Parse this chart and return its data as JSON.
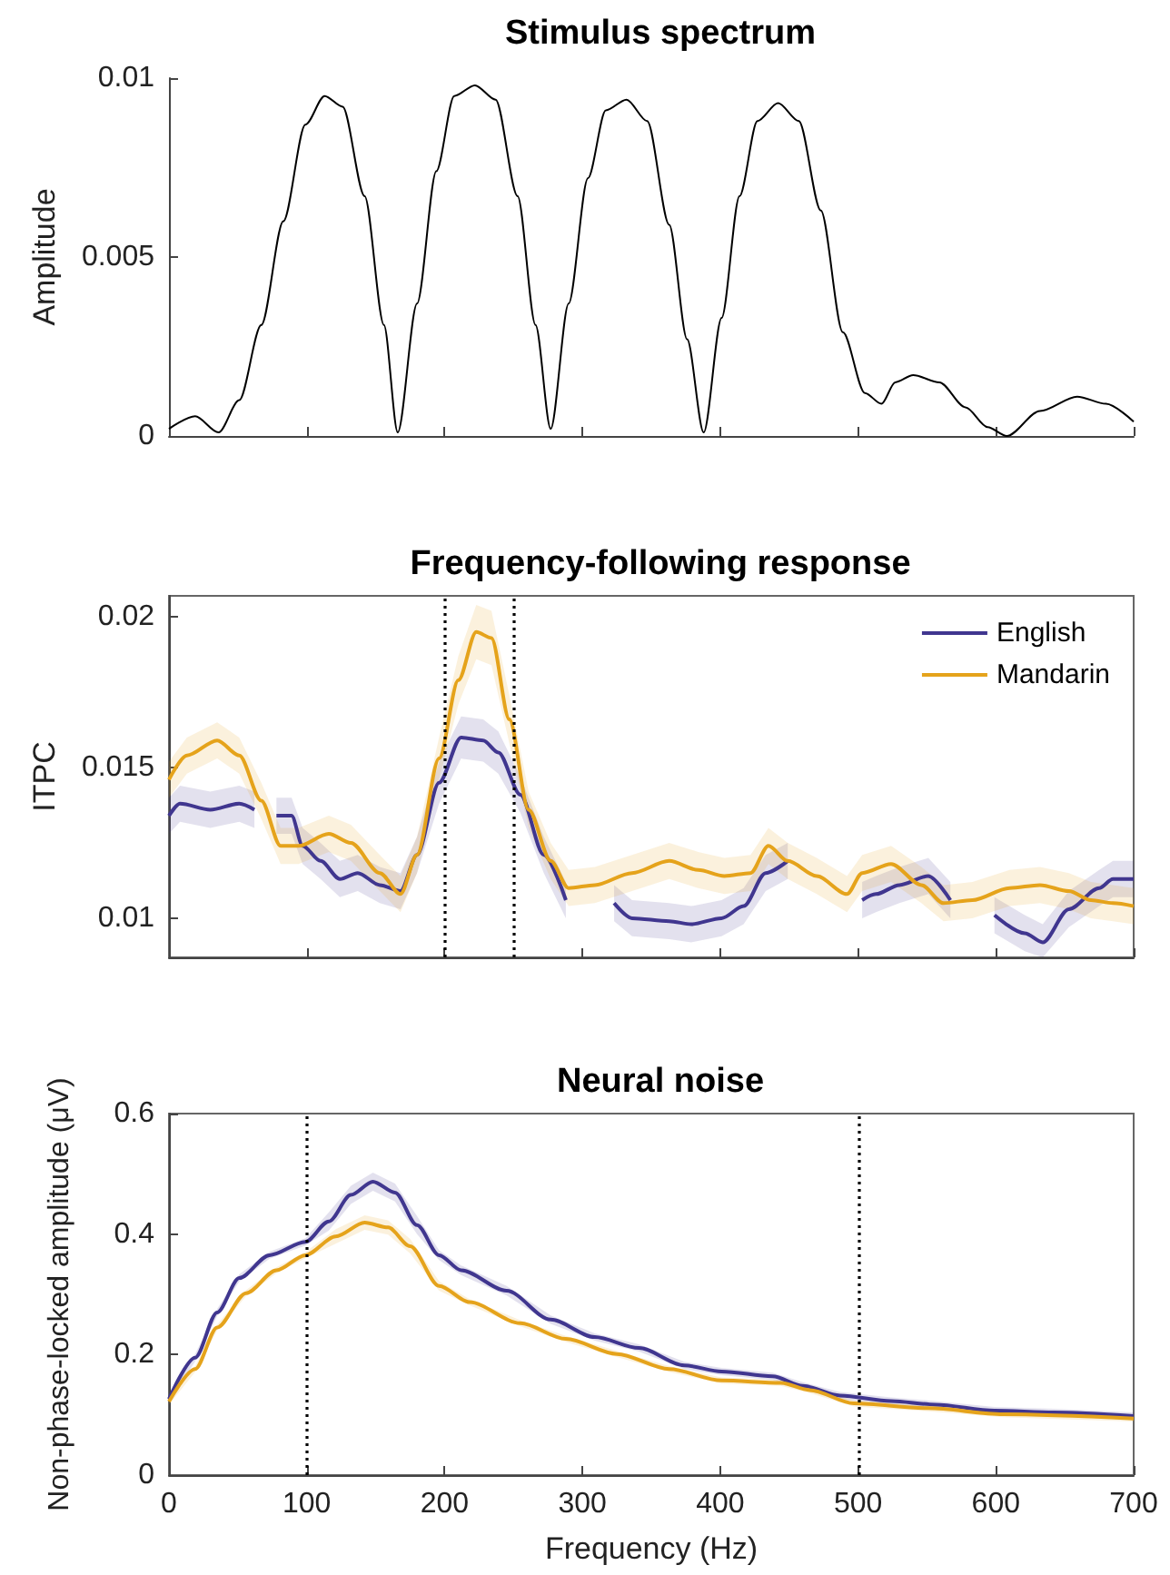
{
  "chart_data": [
    {
      "type": "line",
      "title": "Stimulus spectrum",
      "ylabel": "Amplitude",
      "xlim": [
        0,
        700
      ],
      "ylim": [
        0,
        0.01
      ],
      "yticks": [
        0,
        0.005,
        0.01
      ],
      "xticks": [
        {
          "value": 0,
          "label": null
        },
        {
          "value": 100,
          "label": null
        },
        {
          "value": 200,
          "label": null
        },
        {
          "value": 300,
          "label": null
        },
        {
          "value": 400,
          "label": null
        },
        {
          "value": 500,
          "label": null
        },
        {
          "value": 600,
          "label": null
        },
        {
          "value": 700,
          "label": null
        }
      ],
      "tick_labels": "y",
      "grid": false,
      "legend": false,
      "series": [
        {
          "color": "#000000",
          "x": [
            0,
            19,
            36,
            51,
            67,
            83,
            99,
            113,
            126,
            142,
            156,
            166,
            180,
            194,
            207,
            222,
            237,
            253,
            266,
            277,
            290,
            304,
            317,
            332,
            347,
            363,
            376,
            388,
            401,
            414,
            427,
            442,
            457,
            473,
            489,
            505,
            517,
            527,
            540,
            559,
            578,
            594,
            608,
            632,
            659,
            680,
            700
          ],
          "values": [
            0.0002,
            0.00055,
            0.0001,
            0.001,
            0.0031,
            0.006,
            0.0087,
            0.0095,
            0.0092,
            0.0067,
            0.0031,
            0.0001,
            0.0037,
            0.0074,
            0.0095,
            0.0098,
            0.0094,
            0.0067,
            0.0031,
            0.0002,
            0.0037,
            0.0072,
            0.0091,
            0.0094,
            0.0088,
            0.0059,
            0.0027,
            0.0001,
            0.0033,
            0.0067,
            0.0088,
            0.0093,
            0.0088,
            0.0063,
            0.0029,
            0.0012,
            0.0009,
            0.0015,
            0.0017,
            0.0015,
            0.0008,
            0.00025,
            0.0,
            0.0007,
            0.0011,
            0.0009,
            0.0004
          ]
        }
      ]
    },
    {
      "type": "line",
      "title": "Frequency-following response",
      "ylabel": "ITPC",
      "xlim": [
        0,
        700
      ],
      "ylim": [
        0.0087,
        0.0207
      ],
      "yticks": [
        0.01,
        0.015,
        0.02
      ],
      "xticks": [
        {
          "value": 0,
          "label": null
        },
        {
          "value": 100,
          "label": null
        },
        {
          "value": 200,
          "label": null
        },
        {
          "value": 300,
          "label": null
        },
        {
          "value": 400,
          "label": null
        },
        {
          "value": 500,
          "label": null
        },
        {
          "value": 600,
          "label": null
        },
        {
          "value": 700,
          "label": null
        }
      ],
      "tick_labels": "y",
      "grid": false,
      "legend": "top right",
      "ref_lines": [
        {
          "axis": "x",
          "value": 200,
          "color": "#000000",
          "line_style": "dotted"
        },
        {
          "axis": "x",
          "value": 250,
          "color": "#000000",
          "line_style": "dotted"
        }
      ],
      "series": [
        {
          "name": "English",
          "color": "#40368f",
          "x": [
            0,
            8,
            30,
            51,
            62,
            67,
            78,
            89,
            97,
            110,
            124,
            137,
            153,
            168,
            180,
            196,
            212,
            228,
            239,
            255,
            272,
            288,
            300,
            323,
            336,
            363,
            379,
            401,
            417,
            433,
            449,
            470,
            503,
            513,
            530,
            551,
            567,
            585,
            599,
            621,
            634,
            653,
            675,
            685,
            700
          ],
          "values": [
            0.0134,
            0.0138,
            0.0136,
            0.0138,
            0.0136,
            null,
            0.0134,
            0.0134,
            0.0124,
            0.0119,
            0.0113,
            0.0115,
            0.0111,
            0.0109,
            0.0121,
            0.0145,
            0.016,
            0.0159,
            0.0155,
            0.0141,
            0.0121,
            0.0106,
            null,
            0.0105,
            0.01,
            0.0099,
            0.0098,
            0.01,
            0.0104,
            0.0115,
            0.0119,
            null,
            0.0106,
            0.0108,
            0.0111,
            0.0114,
            0.0106,
            null,
            0.0101,
            0.0095,
            0.0092,
            0.0103,
            0.011,
            0.0113,
            0.0113
          ],
          "lower": [
            0.0128,
            0.0132,
            0.013,
            0.0132,
            0.013,
            null,
            0.0128,
            0.0128,
            0.0118,
            0.0113,
            0.0107,
            0.0109,
            0.0105,
            0.0103,
            0.0115,
            0.0138,
            0.0153,
            0.0152,
            0.0148,
            0.0135,
            0.0115,
            0.01,
            null,
            0.0099,
            0.0094,
            0.0093,
            0.0092,
            0.0094,
            0.0098,
            0.0109,
            0.0113,
            null,
            0.01,
            0.0102,
            0.0105,
            0.0108,
            0.01,
            null,
            0.0095,
            0.0089,
            0.0087,
            0.0097,
            0.0104,
            0.0107,
            0.0107
          ],
          "upper": [
            0.014,
            0.0144,
            0.0142,
            0.0144,
            0.0142,
            null,
            0.014,
            0.014,
            0.013,
            0.0125,
            0.0119,
            0.0121,
            0.0117,
            0.0115,
            0.0127,
            0.0152,
            0.0167,
            0.0166,
            0.0162,
            0.0147,
            0.0127,
            0.0112,
            null,
            0.0111,
            0.0106,
            0.0105,
            0.0104,
            0.0106,
            0.011,
            0.0121,
            0.0125,
            null,
            0.0112,
            0.0114,
            0.0117,
            0.012,
            0.0112,
            null,
            0.0107,
            0.0101,
            0.0098,
            0.0109,
            0.0116,
            0.0119,
            0.0119
          ]
        },
        {
          "name": "Mandarin",
          "color": "#e5a31b",
          "x": [
            0,
            13,
            35,
            51,
            67,
            81,
            94,
            116,
            132,
            153,
            168,
            180,
            196,
            210,
            223,
            234,
            247,
            261,
            277,
            290,
            309,
            336,
            363,
            384,
            403,
            422,
            435,
            449,
            470,
            492,
            503,
            524,
            546,
            562,
            583,
            610,
            632,
            653,
            669,
            685,
            700
          ],
          "values": [
            0.0146,
            0.0154,
            0.0159,
            0.0154,
            0.0139,
            0.0124,
            0.0124,
            0.0128,
            0.0125,
            0.0115,
            0.0108,
            0.0121,
            0.0153,
            0.0179,
            0.0195,
            0.0193,
            0.0166,
            0.0136,
            0.0119,
            0.011,
            0.0111,
            0.0115,
            0.0119,
            0.0116,
            0.0114,
            0.0115,
            0.0124,
            0.0119,
            0.0114,
            0.0108,
            0.0115,
            0.0118,
            0.0111,
            0.0105,
            0.0106,
            0.011,
            0.0111,
            0.0109,
            0.0106,
            0.0105,
            0.0104
          ],
          "lower": [
            0.014,
            0.0148,
            0.0153,
            0.0148,
            0.0133,
            0.0118,
            0.0118,
            0.0122,
            0.0119,
            0.0109,
            0.0102,
            0.0115,
            0.0146,
            0.0171,
            0.0186,
            0.0184,
            0.0158,
            0.013,
            0.0113,
            0.0104,
            0.0105,
            0.0109,
            0.0113,
            0.011,
            0.0108,
            0.0109,
            0.0118,
            0.0113,
            0.0108,
            0.0102,
            0.0109,
            0.0112,
            0.0105,
            0.0099,
            0.01,
            0.0104,
            0.0105,
            0.0103,
            0.01,
            0.0099,
            0.0098
          ],
          "upper": [
            0.0152,
            0.016,
            0.0165,
            0.016,
            0.0145,
            0.013,
            0.013,
            0.0134,
            0.0131,
            0.0121,
            0.0114,
            0.0127,
            0.016,
            0.0187,
            0.0204,
            0.0202,
            0.0174,
            0.0142,
            0.0125,
            0.0116,
            0.0117,
            0.0121,
            0.0125,
            0.0122,
            0.012,
            0.0121,
            0.013,
            0.0125,
            0.012,
            0.0114,
            0.0121,
            0.0124,
            0.0117,
            0.0111,
            0.0112,
            0.0116,
            0.0117,
            0.0115,
            0.0112,
            0.0111,
            0.011
          ]
        }
      ]
    },
    {
      "type": "line",
      "title": "Neural noise",
      "xlabel": "Frequency (Hz)",
      "ylabel": "Non-phase-locked amplitude (μV)",
      "xlim": [
        0,
        700
      ],
      "ylim": [
        0,
        0.6
      ],
      "xticks": [
        0,
        100,
        200,
        300,
        400,
        500,
        600,
        700
      ],
      "yticks": [
        0,
        0.2,
        0.4,
        0.6
      ],
      "grid": false,
      "legend": false,
      "ref_lines": [
        {
          "axis": "x",
          "value": 100,
          "color": "#000000",
          "line_style": "dotted"
        },
        {
          "axis": "x",
          "value": 500,
          "color": "#000000",
          "line_style": "dotted"
        }
      ],
      "series": [
        {
          "color": "#40368f",
          "x": [
            0,
            19,
            35,
            51,
            73,
            99,
            116,
            132,
            148,
            164,
            180,
            196,
            212,
            245,
            277,
            309,
            341,
            374,
            401,
            438,
            460,
            487,
            524,
            556,
            599,
            642,
            700
          ],
          "values": [
            0.126,
            0.195,
            0.27,
            0.327,
            0.365,
            0.387,
            0.421,
            0.465,
            0.487,
            0.469,
            0.415,
            0.365,
            0.34,
            0.306,
            0.258,
            0.229,
            0.211,
            0.182,
            0.172,
            0.164,
            0.148,
            0.132,
            0.123,
            0.117,
            0.107,
            0.104,
            0.098
          ],
          "lower": [
            0.12,
            0.189,
            0.264,
            0.321,
            0.359,
            0.381,
            0.406,
            0.45,
            0.472,
            0.454,
            0.4,
            0.357,
            0.332,
            0.298,
            0.251,
            0.223,
            0.205,
            0.176,
            0.166,
            0.158,
            0.142,
            0.126,
            0.117,
            0.111,
            0.101,
            0.098,
            0.092
          ],
          "upper": [
            0.132,
            0.201,
            0.276,
            0.333,
            0.371,
            0.393,
            0.436,
            0.48,
            0.502,
            0.484,
            0.43,
            0.373,
            0.348,
            0.314,
            0.265,
            0.235,
            0.217,
            0.188,
            0.178,
            0.17,
            0.154,
            0.138,
            0.129,
            0.123,
            0.113,
            0.11,
            0.104
          ]
        },
        {
          "color": "#e5a31b",
          "x": [
            0,
            19,
            35,
            56,
            78,
            99,
            121,
            142,
            159,
            175,
            196,
            218,
            255,
            288,
            325,
            363,
            401,
            444,
            465,
            497,
            551,
            605,
            700
          ],
          "values": [
            0.122,
            0.176,
            0.245,
            0.302,
            0.34,
            0.365,
            0.396,
            0.419,
            0.411,
            0.38,
            0.314,
            0.287,
            0.252,
            0.226,
            0.201,
            0.176,
            0.157,
            0.153,
            0.141,
            0.119,
            0.111,
            0.101,
            0.094
          ],
          "lower": [
            0.117,
            0.171,
            0.24,
            0.297,
            0.335,
            0.36,
            0.384,
            0.407,
            0.399,
            0.368,
            0.306,
            0.282,
            0.247,
            0.221,
            0.196,
            0.171,
            0.152,
            0.148,
            0.136,
            0.114,
            0.106,
            0.096,
            0.089
          ],
          "upper": [
            0.127,
            0.181,
            0.25,
            0.307,
            0.345,
            0.37,
            0.408,
            0.431,
            0.423,
            0.392,
            0.322,
            0.292,
            0.257,
            0.231,
            0.206,
            0.181,
            0.162,
            0.158,
            0.146,
            0.124,
            0.116,
            0.106,
            0.099
          ]
        }
      ]
    }
  ]
}
